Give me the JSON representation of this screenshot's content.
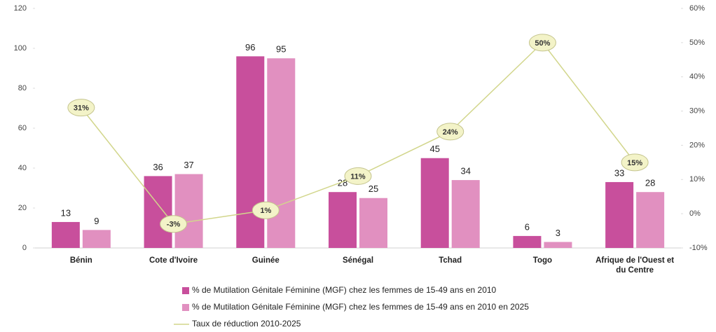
{
  "chart_data": {
    "type": "bar",
    "categories": [
      "Bénin",
      "Cote d'Ivoire",
      "Guinée",
      "Sénégal",
      "Tchad",
      "Togo",
      "Afrique de l'Ouest et du Centre"
    ],
    "series": [
      {
        "name": "% de Mutilation Génitale Féminine (MGF) chez les femmes de 15-49 ans  en 2010",
        "color": "#c84f9c",
        "values": [
          13,
          36,
          96,
          28,
          45,
          6,
          33
        ]
      },
      {
        "name": "% de Mutilation Génitale Féminine (MGF) chez les femmes de 15-49 ans  en 2010 en 2025",
        "color": "#e190c0",
        "values": [
          9,
          37,
          95,
          25,
          34,
          3,
          28
        ]
      },
      {
        "name": "Taux de réduction 2010-2025",
        "color": "#d2d68c",
        "type": "line",
        "axis": "y2",
        "values": [
          31,
          -3,
          1,
          11,
          24,
          50,
          15
        ],
        "value_labels": [
          "31%",
          "-3%",
          "1%",
          "11%",
          "24%",
          "50%",
          "15%"
        ]
      }
    ],
    "ylim": [
      0,
      120
    ],
    "yticks": [
      0,
      20,
      40,
      60,
      80,
      100,
      120
    ],
    "y2lim": [
      -10,
      60
    ],
    "y2ticks": [
      {
        "value": -10,
        "label": "-10%"
      },
      {
        "value": 0,
        "label": "0%"
      },
      {
        "value": 10,
        "label": "10%"
      },
      {
        "value": 20,
        "label": "20%"
      },
      {
        "value": 30,
        "label": "30%"
      },
      {
        "value": 40,
        "label": "40%"
      },
      {
        "value": 50,
        "label": "50%"
      },
      {
        "value": 60,
        "label": "60%"
      }
    ],
    "legend": "bottom"
  }
}
